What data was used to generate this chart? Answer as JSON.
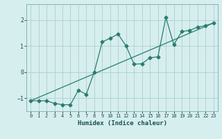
{
  "xlabel": "Humidex (Indice chaleur)",
  "ylabel": "",
  "bg_color": "#d6eeee",
  "line_color": "#2a7d6e",
  "grid_color": "#aecece",
  "xlim": [
    -0.5,
    23.5
  ],
  "ylim": [
    -1.5,
    2.6
  ],
  "yticks": [
    -1,
    0,
    1,
    2
  ],
  "xticks": [
    0,
    1,
    2,
    3,
    4,
    5,
    6,
    7,
    8,
    9,
    10,
    11,
    12,
    13,
    14,
    15,
    16,
    17,
    18,
    19,
    20,
    21,
    22,
    23
  ],
  "series1_x": [
    0,
    1,
    2,
    3,
    4,
    5,
    6,
    7,
    8,
    9,
    10,
    11,
    12,
    13,
    14,
    15,
    16,
    17,
    18,
    19,
    20,
    21,
    22,
    23
  ],
  "series1_y": [
    -1.1,
    -1.1,
    -1.1,
    -1.2,
    -1.25,
    -1.25,
    -0.7,
    -0.85,
    0.0,
    1.15,
    1.3,
    1.45,
    1.0,
    0.3,
    0.32,
    0.55,
    0.58,
    2.1,
    1.05,
    1.55,
    1.6,
    1.72,
    1.78,
    1.88
  ],
  "trend_x": [
    0,
    23
  ],
  "trend_y": [
    -1.1,
    1.88
  ]
}
